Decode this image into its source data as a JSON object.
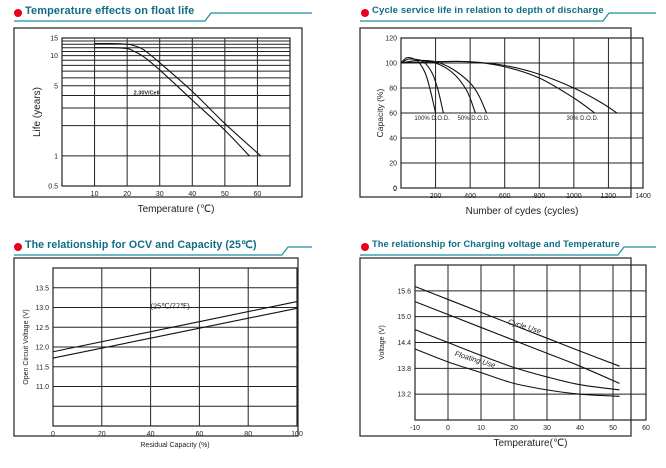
{
  "accent": {
    "title_color": "#0e6d84",
    "bullet_color": "#e8001c",
    "underline_color": "#1a8fa0"
  },
  "panels": [
    {
      "title": "Temperature effects on float life"
    },
    {
      "title": "Cycle service life in relation to depth of discharge"
    },
    {
      "title": "The relationship  for OCV and Capacity (25℃)"
    },
    {
      "title": "The relationship for Charging voltage and Temperature"
    }
  ],
  "chart_data": [
    {
      "type": "line",
      "title": "Temperature effects on float life",
      "xlabel": "Temperature (℃)",
      "ylabel": "Life (years)",
      "yscale": "log",
      "xlim": [
        0,
        70
      ],
      "ylim": [
        0.5,
        15
      ],
      "xticks": [
        "10",
        "20",
        "30",
        "40",
        "50",
        "60"
      ],
      "xtick_values": [
        10,
        20,
        30,
        40,
        50,
        60
      ],
      "yticks": [
        "15",
        "10",
        "5",
        "1",
        "0.5"
      ],
      "ytick_values": [
        15,
        10,
        5,
        1,
        0.5
      ],
      "ygrid": [
        1,
        2,
        3,
        4,
        5,
        6,
        7,
        8,
        9,
        10,
        11,
        12,
        13,
        14,
        15
      ],
      "grid": true,
      "annotation": "2.30V/Cell",
      "series": [
        {
          "name": "upper",
          "x": [
            10,
            15,
            20,
            22,
            25,
            30,
            40,
            50,
            61
          ],
          "y": [
            13.2,
            13.2,
            13,
            12.6,
            11.5,
            8.5,
            4.4,
            2.1,
            1
          ]
        },
        {
          "name": "lower",
          "x": [
            10,
            15,
            20,
            22,
            25,
            30,
            40,
            50,
            57.5
          ],
          "y": [
            12,
            12,
            11.8,
            11.1,
            9.8,
            7.2,
            3.6,
            1.8,
            1
          ]
        }
      ]
    },
    {
      "type": "line",
      "title": "Cycle service life in relation to depth of discharge",
      "xlabel": "Number of cydes (cycles)",
      "ylabel": "Capacity",
      "ylabel_unit": "(%)",
      "xlim": [
        0,
        1400
      ],
      "ylim": [
        0,
        120
      ],
      "xticks": [
        "200",
        "400",
        "600",
        "800",
        "1000",
        "1200",
        "1400"
      ],
      "xtick_values": [
        200,
        400,
        600,
        800,
        1000,
        1200,
        1400
      ],
      "yticks": [
        "120",
        "100",
        "80",
        "60",
        "40",
        "20",
        "0"
      ],
      "ytick_values": [
        120,
        100,
        80,
        60,
        40,
        20,
        0
      ],
      "grid": true,
      "annotations": [
        {
          "text": "100% D.O.D.",
          "x": 180,
          "y": 56
        },
        {
          "text": "50% D.O.D.",
          "x": 420,
          "y": 56
        },
        {
          "text": "30% D.O.D.",
          "x": 1050,
          "y": 56
        }
      ],
      "series": [
        {
          "name": "100% D.O.D. a",
          "x": [
            0,
            30,
            60,
            100,
            140,
            170,
            200
          ],
          "y": [
            100,
            104,
            104,
            101,
            92,
            78,
            60
          ]
        },
        {
          "name": "100% D.O.D. b",
          "x": [
            0,
            40,
            80,
            130,
            180,
            215,
            245
          ],
          "y": [
            100,
            103,
            103,
            101,
            92,
            78,
            60
          ]
        },
        {
          "name": "50% D.O.D. a",
          "x": [
            0,
            100,
            200,
            300,
            380,
            430
          ],
          "y": [
            100,
            102,
            100,
            92,
            78,
            60
          ]
        },
        {
          "name": "50% D.O.D. b",
          "x": [
            0,
            100,
            200,
            300,
            400,
            450,
            495
          ],
          "y": [
            100,
            102,
            101,
            95,
            84,
            74,
            60
          ]
        },
        {
          "name": "30% D.O.D. a",
          "x": [
            0,
            200,
            400,
            600,
            800,
            1000,
            1120
          ],
          "y": [
            100,
            101,
            101,
            97,
            88,
            72,
            60
          ]
        },
        {
          "name": "30% D.O.D. b",
          "x": [
            0,
            200,
            400,
            600,
            800,
            1000,
            1150,
            1250
          ],
          "y": [
            100,
            101,
            101,
            98,
            91,
            80,
            69,
            60
          ]
        }
      ]
    },
    {
      "type": "line",
      "title": "The relationship  for OCV and Capacity (25℃)",
      "xlabel": "Residual Capacity (%)",
      "ylabel": "Open Circuit Voltage (V)",
      "xlim": [
        0,
        100
      ],
      "ylim": [
        10.0,
        14.0
      ],
      "xticks": [
        "0",
        "20",
        "40",
        "60",
        "80",
        "100"
      ],
      "xtick_values": [
        0,
        20,
        40,
        60,
        80,
        100
      ],
      "yticks": [
        "13.5",
        "13.0",
        "12.5",
        "12.0",
        "11.5",
        "11.0"
      ],
      "ytick_values": [
        13.5,
        13.0,
        12.5,
        12.0,
        11.5,
        11.0
      ],
      "ygrid": [
        10.5,
        11.0,
        11.5,
        12.0,
        12.5,
        13.0,
        13.5
      ],
      "grid": true,
      "annotation": "(25℃/77℉)",
      "series": [
        {
          "name": "upper",
          "x": [
            0,
            100
          ],
          "y": [
            11.88,
            13.15
          ]
        },
        {
          "name": "lower",
          "x": [
            0,
            100
          ],
          "y": [
            11.72,
            12.98
          ]
        }
      ]
    },
    {
      "type": "line",
      "title": "The relationship for Charging voltage and Temperature",
      "xlabel": "Temperature(℃)",
      "ylabel": "Voltage (V)",
      "xlim": [
        -10,
        60
      ],
      "ylim": [
        12.6,
        16.2
      ],
      "xticks": [
        "-10",
        "0",
        "10",
        "20",
        "30",
        "40",
        "50",
        "60"
      ],
      "xtick_values": [
        -10,
        0,
        10,
        20,
        30,
        40,
        50,
        60
      ],
      "yticks": [
        "15.6",
        "15.0",
        "14.4",
        "13.8",
        "13.2"
      ],
      "ytick_values": [
        15.6,
        15.0,
        14.4,
        13.8,
        13.2
      ],
      "ygrid": [
        13.2,
        13.8,
        14.4,
        15.0,
        15.6
      ],
      "grid": true,
      "annotations": [
        {
          "text": "Cycle Use",
          "x": 23,
          "y": 14.72
        },
        {
          "text": "Floating Use",
          "x": 8,
          "y": 13.95
        }
      ],
      "series": [
        {
          "name": "Cycle Use upper",
          "x": [
            -10,
            0,
            10,
            20,
            30,
            40,
            52
          ],
          "y": [
            15.7,
            15.4,
            15.1,
            14.8,
            14.5,
            14.2,
            13.85
          ]
        },
        {
          "name": "Cycle Use lower",
          "x": [
            -10,
            0,
            10,
            20,
            30,
            40,
            52
          ],
          "y": [
            15.35,
            15.05,
            14.75,
            14.45,
            14.15,
            13.85,
            13.45
          ]
        },
        {
          "name": "Floating Use upper",
          "x": [
            -10,
            0,
            10,
            20,
            30,
            40,
            52
          ],
          "y": [
            14.7,
            14.4,
            14.1,
            13.82,
            13.6,
            13.42,
            13.3
          ]
        },
        {
          "name": "Floating Use lower",
          "x": [
            -10,
            0,
            10,
            20,
            30,
            40,
            52
          ],
          "y": [
            14.25,
            13.95,
            13.7,
            13.45,
            13.3,
            13.2,
            13.15
          ]
        }
      ]
    }
  ]
}
